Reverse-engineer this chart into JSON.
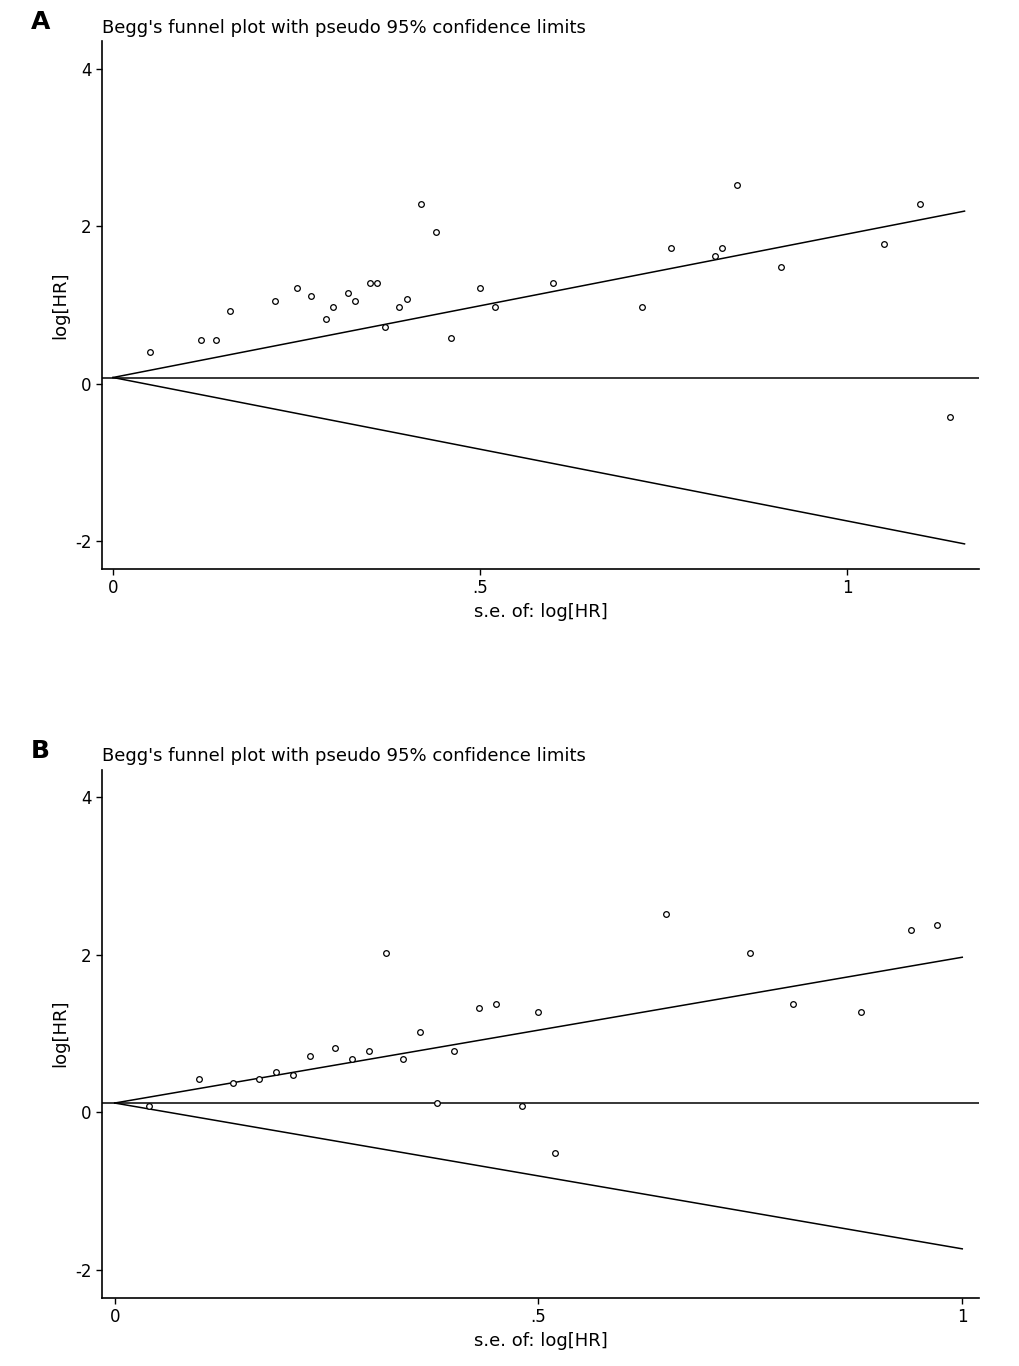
{
  "panel_A": {
    "title": "Begg's funnel plot with pseudo 95% confidence limits",
    "xlabel": "s.e. of: log[HR]",
    "ylabel": "log[HR]",
    "xlim": [
      -0.015,
      1.18
    ],
    "ylim": [
      -2.35,
      4.35
    ],
    "xticks": [
      0,
      0.5,
      1.0
    ],
    "xticklabels": [
      "0",
      ".5",
      "1"
    ],
    "yticks": [
      -2,
      0,
      2,
      4
    ],
    "yticklabels": [
      "-2",
      "0",
      "2",
      "4"
    ],
    "intercept": 0.08,
    "slope_upper": 1.82,
    "slope_lower": -1.82,
    "x_line_end": 1.16,
    "points_x": [
      0.05,
      0.12,
      0.14,
      0.16,
      0.22,
      0.25,
      0.27,
      0.29,
      0.3,
      0.32,
      0.33,
      0.35,
      0.36,
      0.37,
      0.39,
      0.4,
      0.42,
      0.44,
      0.46,
      0.5,
      0.52,
      0.6,
      0.72,
      0.76,
      0.82,
      0.83,
      0.85,
      0.91,
      1.05,
      1.1,
      1.14
    ],
    "points_y": [
      0.4,
      0.55,
      0.55,
      0.92,
      1.05,
      1.22,
      1.12,
      0.82,
      0.98,
      1.15,
      1.05,
      1.28,
      1.28,
      0.72,
      0.98,
      1.08,
      2.28,
      1.93,
      0.58,
      1.22,
      0.98,
      1.28,
      0.98,
      1.72,
      1.62,
      1.72,
      2.52,
      1.48,
      1.78,
      2.28,
      -0.42
    ]
  },
  "panel_B": {
    "title": "Begg's funnel plot with pseudo 95% confidence limits",
    "xlabel": "s.e. of: log[HR]",
    "ylabel": "log[HR]",
    "xlim": [
      -0.015,
      1.02
    ],
    "ylim": [
      -2.35,
      4.35
    ],
    "xticks": [
      0,
      0.5,
      1.0
    ],
    "xticklabels": [
      "0",
      ".5",
      "1"
    ],
    "yticks": [
      -2,
      0,
      2,
      4
    ],
    "yticklabels": [
      "-2",
      "0",
      "2",
      "4"
    ],
    "intercept": 0.12,
    "slope_upper": 1.85,
    "slope_lower": -1.85,
    "x_line_end": 1.0,
    "points_x": [
      0.04,
      0.1,
      0.14,
      0.17,
      0.19,
      0.21,
      0.23,
      0.26,
      0.28,
      0.3,
      0.32,
      0.34,
      0.36,
      0.38,
      0.4,
      0.43,
      0.45,
      0.48,
      0.5,
      0.52,
      0.65,
      0.75,
      0.8,
      0.88,
      0.94,
      0.97
    ],
    "points_y": [
      0.08,
      0.42,
      0.38,
      0.42,
      0.52,
      0.48,
      0.72,
      0.82,
      0.68,
      0.78,
      2.02,
      0.68,
      1.02,
      0.12,
      0.78,
      1.32,
      1.38,
      0.08,
      1.28,
      -0.52,
      2.52,
      2.02,
      1.38,
      1.28,
      2.32,
      2.38
    ]
  },
  "background_color": "#ffffff",
  "label_A": "A",
  "label_B": "B",
  "marker_style": "o",
  "marker_size": 5.5,
  "marker_facecolor": "white",
  "marker_edgecolor": "black",
  "marker_edgewidth": 0.9,
  "line_color": "black",
  "line_width": 1.1
}
